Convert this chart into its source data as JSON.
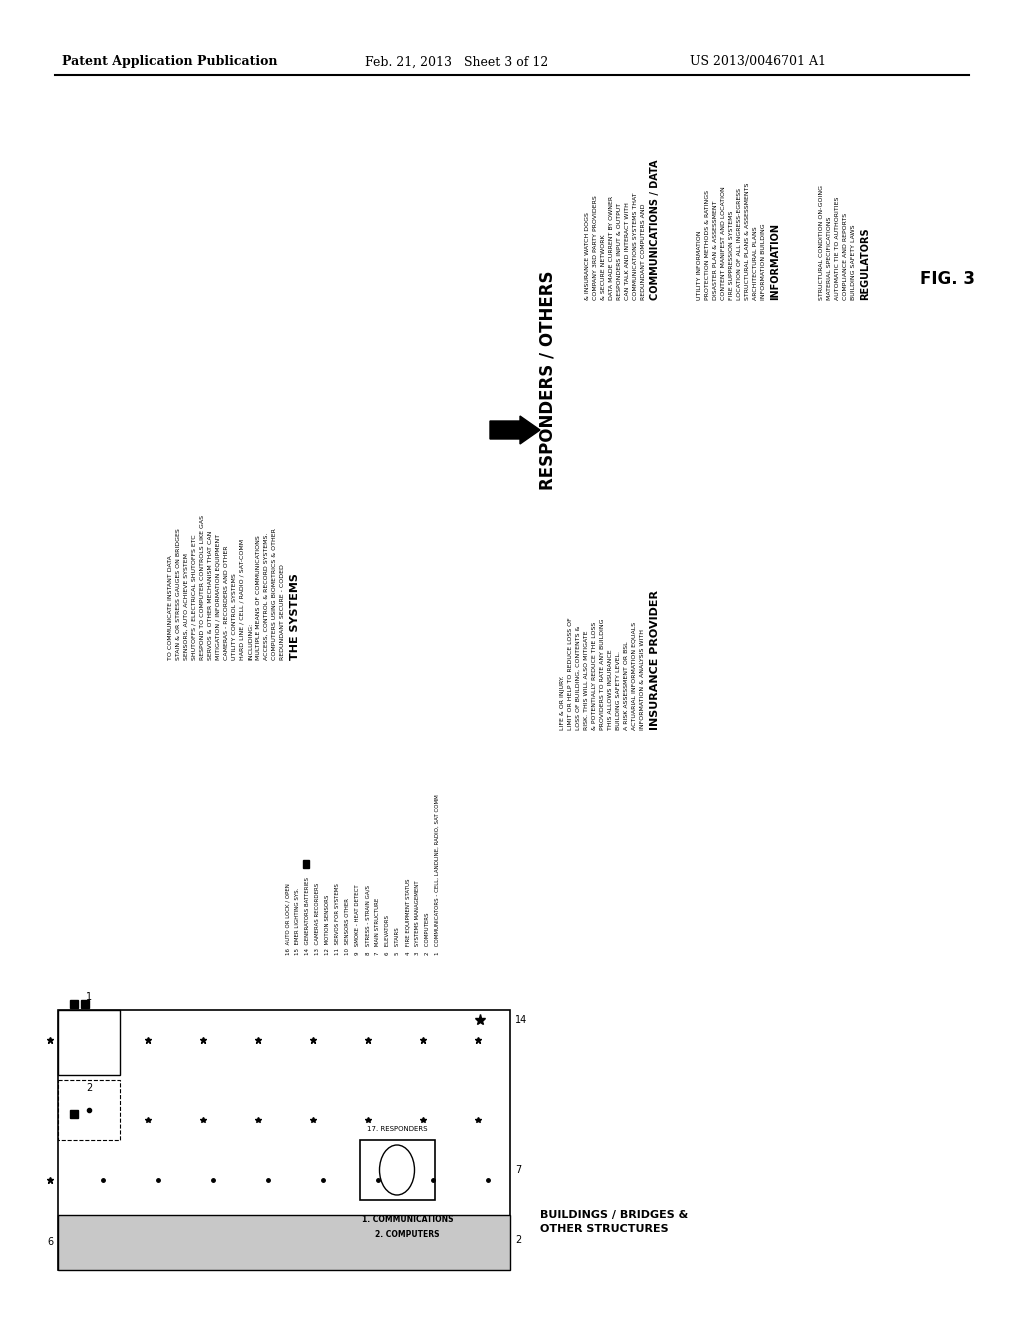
{
  "bg_color": "#ffffff",
  "header_left": "Patent Application Publication",
  "header_center": "Feb. 21, 2013   Sheet 3 of 12",
  "header_right": "US 2013/0046701 A1",
  "fig_label": "FIG. 3",
  "info_title": "INFORMATION",
  "info_lines": [
    "INFORMATION BUILDING",
    "ARCHITECTURAL PLANS",
    "STRUCTURAL PLANS & ASSESSMENTS",
    "LOCATION OF ALL INGRESS-EGRESS",
    "FIRE SUPPRESSION SYSTEMS",
    "CONTENT MANIFEST AND LOCATION",
    "DISASTER PLAN & ASSESSMENT",
    "PROTECTION METHODS & RATINGS",
    "UTILITY INFORMATION"
  ],
  "comm_title": "COMMUNICATIONS / DATA",
  "comm_lines": [
    "REDUNDANT COMPUTERS AND",
    "COMMUNICATIONS SYSTEMS THAT",
    "CAN TALK AND INTERACT WITH",
    "RESPONDERS INPUT & OUTPUT",
    "DATA MADE CURRENT BY OWNER",
    "& SECURE NETWORK",
    "COMPANY 3RD PARTY PROVIDERS",
    "& INSURANCE WATCH DOGS"
  ],
  "reg_title": "REGULATORS",
  "reg_lines": [
    "BUILDING SAFETY LAWS",
    "COMPLIANCE AND REPORTS",
    "AUTOMATIC TIE TO AUTHORITIES",
    "MATERIAL SPECIFICATIONS",
    "STRUCTURAL CONDITION ON-GOING"
  ],
  "responders_label": "RESPONDERS / OTHERS",
  "systems_title": "THE SYSTEMS",
  "systems_lines": [
    "REDUNDANT SECURE - CODED",
    "COMPUTERS USING BIOMETRICS & OTHER",
    "ACCESS, CONTROL & RECORD SYSTEMS.",
    "MULTIPLE MEANS OF COMMUNICATIONS",
    "INCLUDING:",
    "HARD LINE / CELL / RADIO / SAT-COMM",
    "UTILITY CONTROL SYSTEMS",
    "CAMERAS - RECORDERS AND OTHER",
    "MITIGATION / INFORMATION EQUIPMENT",
    "SERVOS & OTHER MECHANISM THAT CAN",
    "RESPOND TO COMPUTER CONTROLS LIKE GAS",
    "SHUTOFFS / ELECTRICAL SHUTOFFS ETC",
    "SENSORS, AUTO ACHIEVE SYSTEM",
    "STAIN & OR STRESS GAUGES ON BRIDGES",
    "TO COMMUNICATE INSTANT DATA"
  ],
  "insurance_title": "INSURANCE PROVIDER",
  "insurance_lines": [
    "INFORMATION & ANALYSIS WITH",
    "ACTUARIAL INFORMATION EQUALS",
    "A RISK ASSESSMENT OR BSL",
    "BUILDING SAFETY LEVEL.",
    "THIS ALLOWS INSURANCE",
    "PROVIDERS TO RATE ANY BUILDING",
    "& POTENTIALLY REDUCE THE LOSS",
    "RISK. THIS WILL ALSO MITIGATE",
    "LOSS OF BUILDING, CONTENTS &",
    "LIMIT OR HELP TO REDUCE LOSS OF",
    "LIFE & OR INJURY."
  ],
  "numbered_items": [
    "1   COMMUNICATORS - CELL, LANDLINE, RADIO, SAT COMM",
    "2   COMPUTERS",
    "3   SYSTEMS MANAGEMENT",
    "4   FIRE EQUIPMENT STATUS",
    "5   STAIRS",
    "6   ELEVATORS",
    "7   MAIN STRUCTURE",
    "8   STRESS - STRAIN GA/S",
    "9   SMOKE - HEAT DETECT",
    "10  SENSORS OTHER",
    "11  SERVOS FOR SYSTEMS",
    "12  MOTION SENSORS",
    "13  CAMERAS RECORDERS",
    "14  GENERATORS BATTERIES",
    "15  EMER LIGHTING SYS.",
    "16  AUTO OR LOCK / OPEN"
  ],
  "responders_num": "17. RESPONDERS",
  "comm_num": "1. COMMUNICATIONS",
  "comp_num": "2. COMPUTERS",
  "buildings_label": "BUILDINGS / BRIDGES &\nOTHER STRUCTURES"
}
